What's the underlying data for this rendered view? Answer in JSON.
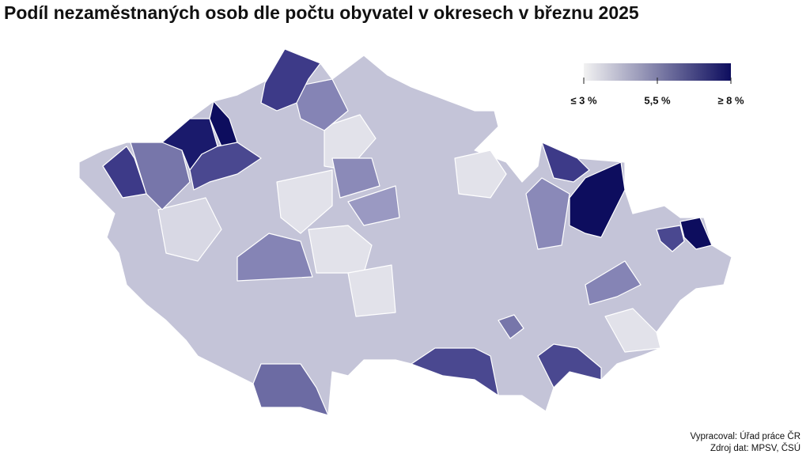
{
  "title": "Podíl nezaměstnaných osob dle počtu obyvatel v okresech v březnu 2025",
  "legend": {
    "labels": [
      "≤ 3 %",
      "5,5 %",
      "≥ 8 %"
    ],
    "colors": [
      "#f2f2f2",
      "#0d0d5e"
    ]
  },
  "credits": [
    "Vypracoval: Úřad práce ČR",
    "Zdroj dat: MPSV, ČSÚ"
  ]
}
